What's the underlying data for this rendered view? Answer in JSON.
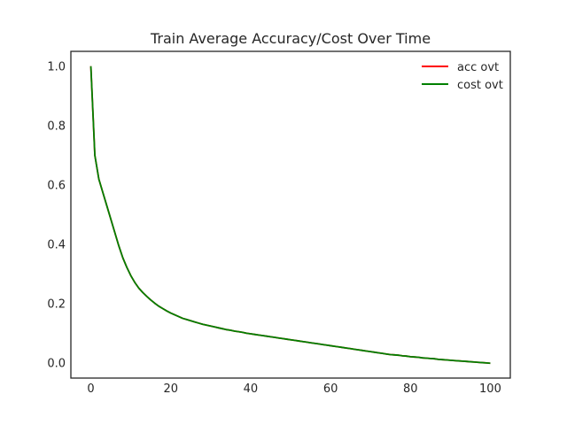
{
  "chart_data": {
    "type": "line",
    "title": "Train Average Accuracy/Cost Over Time",
    "xlabel": "",
    "ylabel": "",
    "xlim": [
      -5,
      105
    ],
    "ylim": [
      -0.05,
      1.05
    ],
    "xticks": [
      0,
      20,
      40,
      60,
      80,
      100
    ],
    "yticks": [
      0.0,
      0.2,
      0.4,
      0.6,
      0.8,
      1.0
    ],
    "xtick_labels": [
      "0",
      "20",
      "40",
      "60",
      "80",
      "100"
    ],
    "ytick_labels": [
      "0.0",
      "0.2",
      "0.4",
      "0.6",
      "0.8",
      "1.0"
    ],
    "grid": false,
    "legend_position": "top-right",
    "x": [
      0,
      1,
      2,
      3,
      4,
      5,
      6,
      7,
      8,
      9,
      10,
      11,
      12,
      13,
      14,
      15,
      16,
      17,
      18,
      19,
      20,
      21,
      22,
      23,
      24,
      25,
      26,
      27,
      28,
      29,
      30,
      31,
      32,
      33,
      34,
      35,
      36,
      37,
      38,
      39,
      40,
      41,
      42,
      43,
      44,
      45,
      46,
      47,
      48,
      49,
      50,
      51,
      52,
      53,
      54,
      55,
      56,
      57,
      58,
      59,
      60,
      61,
      62,
      63,
      64,
      65,
      66,
      67,
      68,
      69,
      70,
      71,
      72,
      73,
      74,
      75,
      76,
      77,
      78,
      79,
      80,
      81,
      82,
      83,
      84,
      85,
      86,
      87,
      88,
      89,
      90,
      91,
      92,
      93,
      94,
      95,
      96,
      97,
      98,
      99,
      100
    ],
    "series": [
      {
        "name": "acc ovt",
        "color": "#ff0000",
        "values": [
          1.0,
          0.7,
          0.62,
          0.575,
          0.53,
          0.485,
          0.44,
          0.395,
          0.355,
          0.323,
          0.295,
          0.272,
          0.253,
          0.238,
          0.225,
          0.213,
          0.202,
          0.192,
          0.184,
          0.176,
          0.169,
          0.163,
          0.157,
          0.151,
          0.147,
          0.143,
          0.139,
          0.135,
          0.131,
          0.128,
          0.125,
          0.122,
          0.119,
          0.116,
          0.113,
          0.111,
          0.108,
          0.106,
          0.104,
          0.101,
          0.099,
          0.097,
          0.095,
          0.093,
          0.091,
          0.089,
          0.087,
          0.085,
          0.083,
          0.081,
          0.079,
          0.077,
          0.075,
          0.073,
          0.071,
          0.069,
          0.067,
          0.065,
          0.063,
          0.061,
          0.059,
          0.057,
          0.055,
          0.053,
          0.051,
          0.049,
          0.047,
          0.045,
          0.043,
          0.041,
          0.039,
          0.037,
          0.035,
          0.033,
          0.031,
          0.029,
          0.028,
          0.027,
          0.025,
          0.024,
          0.022,
          0.021,
          0.02,
          0.018,
          0.017,
          0.016,
          0.015,
          0.013,
          0.012,
          0.011,
          0.01,
          0.009,
          0.008,
          0.007,
          0.006,
          0.005,
          0.004,
          0.003,
          0.002,
          0.001,
          0.0
        ]
      },
      {
        "name": "cost ovt",
        "color": "#008000",
        "values": [
          1.0,
          0.7,
          0.62,
          0.575,
          0.53,
          0.485,
          0.44,
          0.395,
          0.355,
          0.323,
          0.295,
          0.272,
          0.253,
          0.238,
          0.225,
          0.213,
          0.202,
          0.192,
          0.184,
          0.176,
          0.169,
          0.163,
          0.157,
          0.151,
          0.147,
          0.143,
          0.139,
          0.135,
          0.131,
          0.128,
          0.125,
          0.122,
          0.119,
          0.116,
          0.113,
          0.111,
          0.108,
          0.106,
          0.104,
          0.101,
          0.099,
          0.097,
          0.095,
          0.093,
          0.091,
          0.089,
          0.087,
          0.085,
          0.083,
          0.081,
          0.079,
          0.077,
          0.075,
          0.073,
          0.071,
          0.069,
          0.067,
          0.065,
          0.063,
          0.061,
          0.059,
          0.057,
          0.055,
          0.053,
          0.051,
          0.049,
          0.047,
          0.045,
          0.043,
          0.041,
          0.039,
          0.037,
          0.035,
          0.033,
          0.031,
          0.029,
          0.028,
          0.027,
          0.025,
          0.024,
          0.022,
          0.021,
          0.02,
          0.018,
          0.017,
          0.016,
          0.015,
          0.013,
          0.012,
          0.011,
          0.01,
          0.009,
          0.008,
          0.007,
          0.006,
          0.005,
          0.004,
          0.003,
          0.002,
          0.001,
          0.0
        ]
      }
    ]
  }
}
